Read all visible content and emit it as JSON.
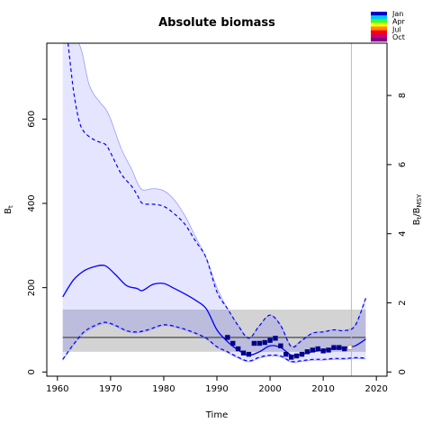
{
  "chart_data": {
    "type": "line",
    "title": "Absolute biomass",
    "xlabel": "Time",
    "ylabel": "B",
    "ylabel_sub": "t",
    "y2label": "B",
    "y2label_sub1": "t",
    "y2label_mid": "/B",
    "y2label_sub2": "MSY",
    "xlim": [
      1958,
      2022
    ],
    "ylim": [
      -10,
      780
    ],
    "y2_scale": 82,
    "x_ticks": [
      1960,
      1970,
      1980,
      1990,
      2000,
      2010,
      2020
    ],
    "y_ticks": [
      0,
      200,
      400,
      600
    ],
    "y2_ticks": [
      0,
      2,
      4,
      6,
      8
    ],
    "grid": false,
    "legend": {
      "placement": "top-right",
      "entries": [
        "Jan",
        "Apr",
        "Jul",
        "Oct"
      ],
      "colors": [
        "#0000cc",
        "#00c8ff",
        "#33ff33",
        "#ffff00",
        "#ff8800",
        "#ff0000",
        "#cc0066",
        "#880088"
      ]
    },
    "bmsy_band": {
      "lower": 48,
      "center": 82,
      "upper": 148,
      "from": 1961,
      "to": 2018
    },
    "vline_x": 2015.3,
    "colors": {
      "line": "#0000ff",
      "ci_fill": "#e0e0ff",
      "ci_edge": "#9a9aff",
      "bmsy_band": "#d3d3d3",
      "bmsy_line": "#555555",
      "points": "#00008b",
      "overlap": "#b8b8d8"
    },
    "series": [
      {
        "name": "median",
        "x": [
          1961,
          1963,
          1965,
          1967,
          1969,
          1971,
          1973,
          1975,
          1976,
          1978,
          1980,
          1982,
          1984,
          1986,
          1988,
          1990,
          1992,
          1994,
          1996,
          1998,
          2000,
          2002,
          2004,
          2006,
          2008,
          2010,
          2012,
          2014,
          2016,
          2018
        ],
        "values": [
          178,
          218,
          240,
          250,
          252,
          230,
          205,
          198,
          193,
          208,
          210,
          198,
          185,
          170,
          150,
          100,
          72,
          52,
          40,
          48,
          62,
          58,
          40,
          42,
          48,
          52,
          55,
          58,
          62,
          78
        ]
      },
      {
        "name": "upper",
        "x": [
          1962,
          1963,
          1964,
          1965,
          1967,
          1969,
          1970,
          1972,
          1974,
          1975,
          1976,
          1978,
          1980,
          1982,
          1984,
          1986,
          1988,
          1990,
          1992,
          1994,
          1996,
          1998,
          2000,
          2002,
          2004,
          2006,
          2008,
          2010,
          2012,
          2014,
          2016,
          2018
        ],
        "values": [
          780,
          670,
          600,
          570,
          550,
          540,
          520,
          470,
          440,
          420,
          400,
          398,
          393,
          375,
          350,
          310,
          270,
          190,
          150,
          110,
          80,
          110,
          135,
          110,
          60,
          75,
          92,
          95,
          100,
          98,
          110,
          175
        ]
      },
      {
        "name": "lower",
        "x": [
          1961,
          1963,
          1965,
          1967,
          1969,
          1971,
          1973,
          1975,
          1977,
          1980,
          1983,
          1986,
          1988,
          1990,
          1992,
          1994,
          1996,
          1998,
          2000,
          2002,
          2004,
          2006,
          2008,
          2010,
          2012,
          2014,
          2016,
          2018
        ],
        "values": [
          30,
          65,
          95,
          110,
          118,
          110,
          98,
          95,
          100,
          112,
          105,
          92,
          80,
          60,
          48,
          35,
          26,
          35,
          40,
          38,
          25,
          27,
          30,
          30,
          32,
          32,
          34,
          33
        ]
      },
      {
        "name": "ci_upper",
        "x": [
          1961,
          1964,
          1966,
          1968,
          1969,
          1970,
          1972,
          1974,
          1975,
          1976,
          1978,
          1980,
          1982,
          1984,
          1986,
          1988,
          1990,
          1992,
          1994,
          1996,
          1998,
          2000,
          2002,
          2004,
          2006,
          2008,
          2010,
          2012,
          2014,
          2016,
          2018
        ],
        "values": [
          780,
          780,
          680,
          640,
          625,
          600,
          530,
          480,
          450,
          432,
          435,
          430,
          408,
          370,
          320,
          270,
          200,
          150,
          112,
          82,
          110,
          135,
          112,
          62,
          77,
          93,
          96,
          100,
          99,
          112,
          176
        ]
      },
      {
        "name": "ci_lower",
        "x": [
          1961,
          1963,
          1965,
          1967,
          1969,
          1971,
          1973,
          1975,
          1977,
          1980,
          1983,
          1986,
          1988,
          1990,
          1992,
          1994,
          1996,
          1998,
          2000,
          2002,
          2004,
          2006,
          2008,
          2010,
          2012,
          2014,
          2016,
          2018
        ],
        "values": [
          28,
          63,
          92,
          107,
          115,
          108,
          96,
          93,
          98,
          110,
          103,
          90,
          78,
          58,
          46,
          33,
          24,
          33,
          38,
          36,
          23,
          25,
          28,
          28,
          30,
          30,
          32,
          31
        ]
      },
      {
        "name": "observations",
        "x": [
          1992,
          1993,
          1994,
          1995,
          1996,
          1997,
          1998,
          1999,
          2000,
          2001,
          2002,
          2003,
          2004,
          2005,
          2006,
          2007,
          2008,
          2009,
          2010,
          2011,
          2012,
          2013,
          2014,
          2015
        ],
        "values": [
          82,
          68,
          55,
          45,
          42,
          68,
          68,
          70,
          75,
          80,
          62,
          42,
          35,
          38,
          42,
          48,
          52,
          55,
          50,
          52,
          58,
          58,
          55,
          58
        ]
      }
    ]
  }
}
